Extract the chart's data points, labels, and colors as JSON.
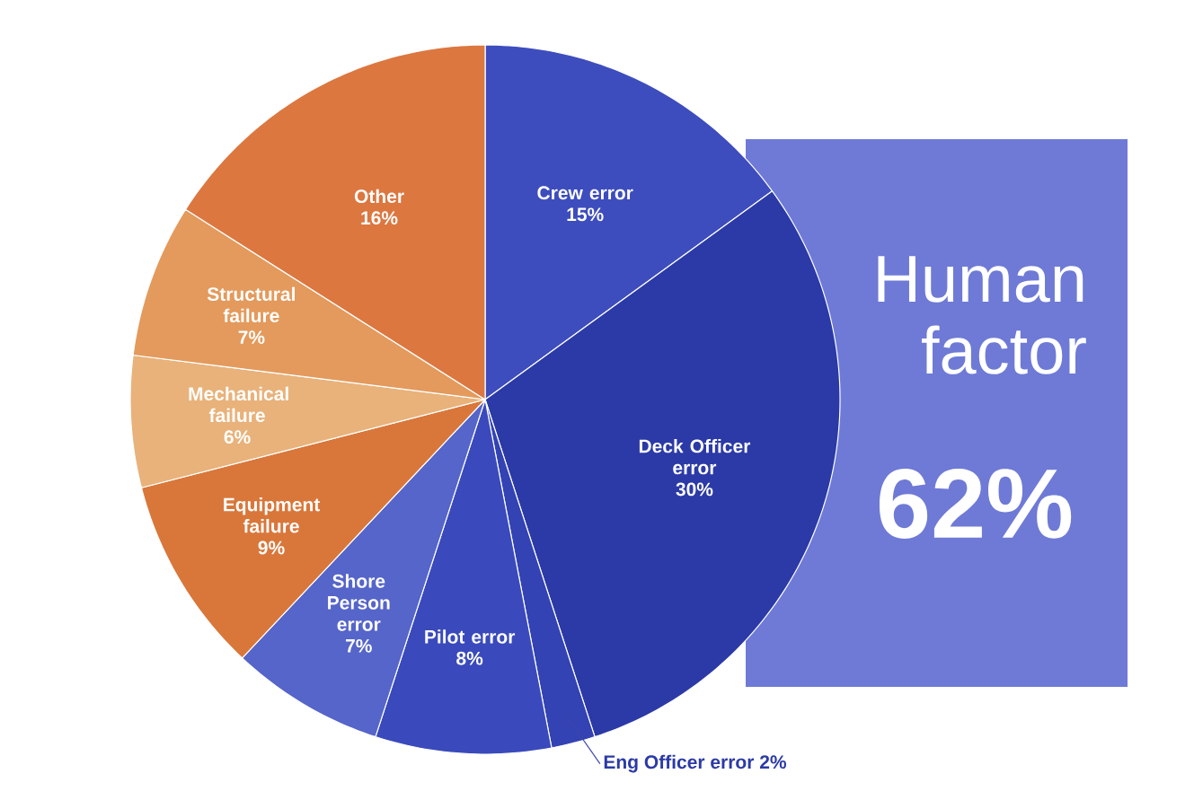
{
  "chart_data": {
    "type": "pie",
    "categories": [
      "Crew error",
      "Deck Officer error",
      "Eng Officer error",
      "Pilot error",
      "Shore Person error",
      "Equipment failure",
      "Mechanical failure",
      "Structural failure",
      "Other"
    ],
    "values": [
      15,
      30,
      2,
      8,
      7,
      9,
      6,
      7,
      16
    ],
    "value_labels": [
      "15%",
      "30%",
      "2%",
      "8%",
      "7%",
      "9%",
      "6%",
      "7%",
      "16%"
    ],
    "colors": [
      "#3d4dbd",
      "#2b3aa6",
      "#3343b3",
      "#3a4abc",
      "#5565c9",
      "#d9773a",
      "#e8b27a",
      "#e39a5c",
      "#dc7740"
    ],
    "annotations": [
      "Human factor",
      "62%"
    ]
  }
}
